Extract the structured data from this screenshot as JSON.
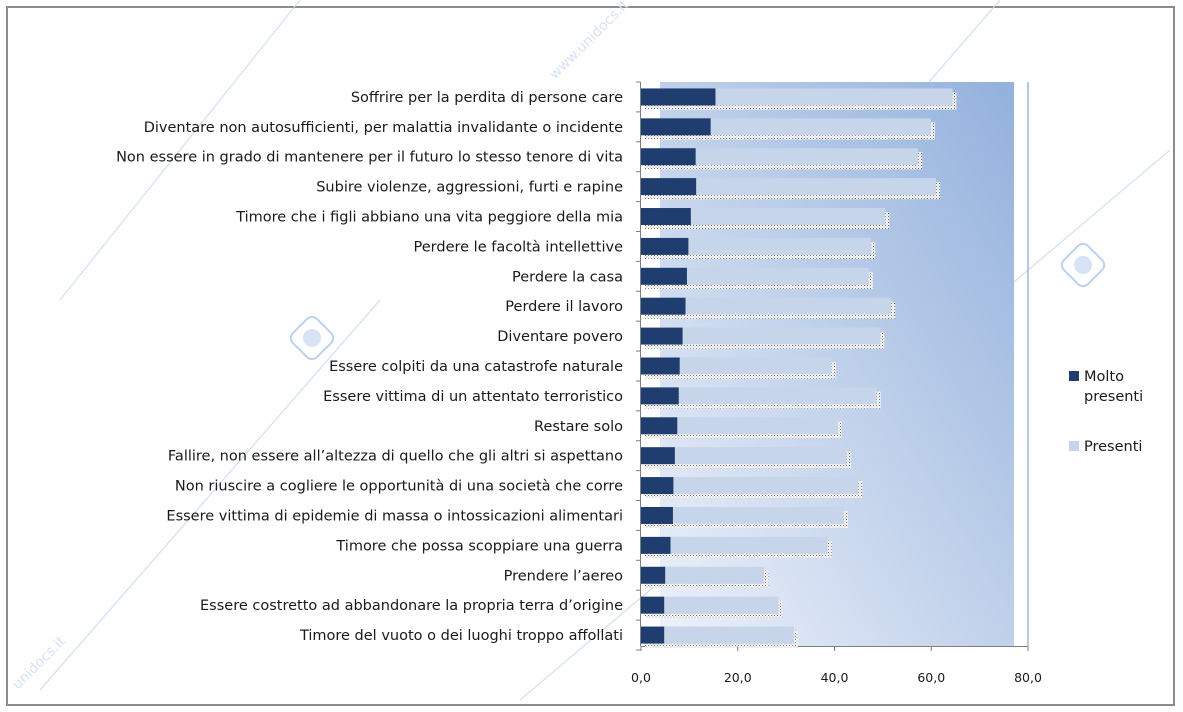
{
  "chart_data": {
    "type": "bar",
    "orientation": "horizontal",
    "stacked": true,
    "categories": [
      "Soffrire per la perdita di persone care",
      "Diventare non autosufficienti, per malattia invalidante o incidente",
      "Non essere in grado di mantenere per il futuro lo stesso tenore di vita",
      "Subire violenze, aggressioni, furti e rapine",
      "Timore che i figli abbiano una vita peggiore della mia",
      "Perdere le facoltà intellettive",
      "Perdere la casa",
      "Perdere il lavoro",
      "Diventare povero",
      "Essere colpiti da una catastrofe naturale",
      "Essere vittima di un attentato terroristico",
      "Restare solo",
      "Fallire, non essere all’altezza di quello che gli altri si aspettano",
      "Non riuscire a cogliere le opportunità di una società che corre",
      "Essere vittima di epidemie di massa o intossicazioni alimentari",
      "Timore che possa scoppiare una guerra",
      "Prendere l’aereo",
      "Essere costretto ad abbandonare la propria terra d’origine",
      "Timore del vuoto o dei luoghi troppo affollati"
    ],
    "series": [
      {
        "name": "Molto presenti",
        "color": "#1f3d6e",
        "values": [
          15.4,
          14.4,
          11.3,
          11.4,
          10.3,
          9.8,
          9.5,
          9.2,
          8.6,
          8.0,
          7.8,
          7.5,
          7.0,
          6.7,
          6.6,
          6.1,
          5.0,
          4.8,
          4.8
        ]
      },
      {
        "name": "Presenti",
        "color": "#c6d5ea",
        "values": [
          49.0,
          45.5,
          46.0,
          49.6,
          40.2,
          37.8,
          37.6,
          42.5,
          40.9,
          31.4,
          40.9,
          33.2,
          35.5,
          38.2,
          35.3,
          32.5,
          20.5,
          23.6,
          26.8
        ]
      }
    ],
    "xlim": [
      0,
      80
    ],
    "xticks": [
      "0,0",
      "20,0",
      "40,0",
      "60,0",
      "80,0"
    ],
    "legend": [
      "Molto",
      "presenti",
      "Presenti"
    ],
    "legend_position": "right",
    "grid": false
  },
  "watermark": {
    "text": "www.unidocs.it"
  }
}
